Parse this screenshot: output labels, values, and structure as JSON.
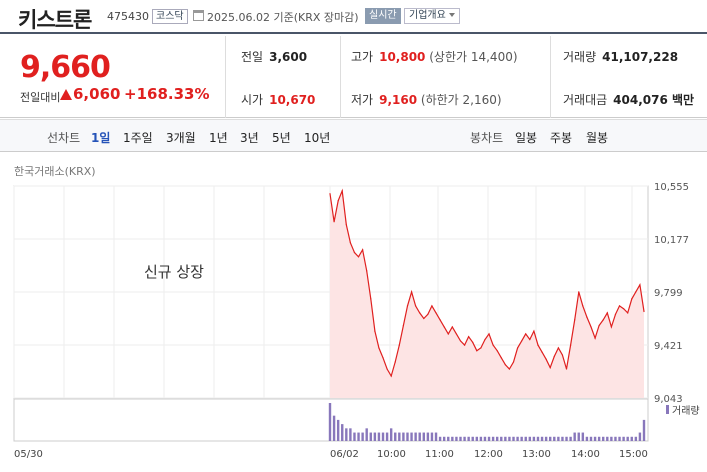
{
  "header": {
    "stock_name": "키스트론",
    "stock_code": "475430",
    "market_badge": "코스닥",
    "date_info": "2025.06.02  기준(KRX 장마감)",
    "realtime_button": "실시간",
    "company_button": "기업개요"
  },
  "price": {
    "current": "9,660",
    "change_label": "전일대비",
    "change": "6,060",
    "change_pct": "+168.33%",
    "up_color": "#e0201f"
  },
  "stats": {
    "prev_close": {
      "label": "전일",
      "value": "3,600"
    },
    "open": {
      "label": "시가",
      "value": "10,670"
    },
    "high": {
      "label": "고가",
      "value": "10,800",
      "sub": "(상한가 14,400)"
    },
    "low": {
      "label": "저가",
      "value": "9,160",
      "sub": "(하한가 2,160)"
    },
    "volume": {
      "label": "거래량",
      "value": "41,107,228"
    },
    "amount": {
      "label": "거래대금",
      "value": "404,076 백만"
    }
  },
  "tabs": {
    "line_label": "선차트",
    "line_items": [
      "1일",
      "1주일",
      "3개월",
      "1년",
      "3년",
      "5년",
      "10년"
    ],
    "candle_label": "봉차트",
    "candle_items": [
      "일봉",
      "주봉",
      "월봉"
    ],
    "active": "1일"
  },
  "exchange": "한국거래소(KRX)",
  "chart_data": {
    "type": "area",
    "annotation": "신규 상장",
    "ylim": [
      9043,
      10555
    ],
    "y_ticks": [
      "10,555",
      "10,177",
      "9,799",
      "9,421",
      "9,043"
    ],
    "x_ticks": [
      "05/30",
      "06/02",
      "10:00",
      "11:00",
      "12:00",
      "13:00",
      "14:00",
      "15:00"
    ],
    "volume_legend": "거래량",
    "line_color": "#e0201f",
    "fill_color": "#fde4e4",
    "volume_color": "#8877bb",
    "x": [
      "09:00",
      "09:05",
      "09:10",
      "09:15",
      "09:20",
      "09:25",
      "09:30",
      "09:35",
      "09:40",
      "09:45",
      "09:50",
      "09:55",
      "10:00",
      "10:05",
      "10:10",
      "10:15",
      "10:20",
      "10:25",
      "10:30",
      "10:35",
      "10:40",
      "10:45",
      "10:50",
      "10:55",
      "11:00",
      "11:05",
      "11:10",
      "11:15",
      "11:20",
      "11:25",
      "11:30",
      "11:35",
      "11:40",
      "11:45",
      "11:50",
      "11:55",
      "12:00",
      "12:05",
      "12:10",
      "12:15",
      "12:20",
      "12:25",
      "12:30",
      "12:35",
      "12:40",
      "12:45",
      "12:50",
      "12:55",
      "13:00",
      "13:05",
      "13:10",
      "13:15",
      "13:20",
      "13:25",
      "13:30",
      "13:35",
      "13:40",
      "13:45",
      "13:50",
      "13:55",
      "14:00",
      "14:05",
      "14:10",
      "14:15",
      "14:20",
      "14:25",
      "14:30",
      "14:35",
      "14:40",
      "14:45",
      "14:50",
      "14:55",
      "15:00",
      "15:05",
      "15:10",
      "15:15",
      "15:20",
      "15:30"
    ],
    "values": [
      10500,
      10300,
      10450,
      10520,
      10280,
      10150,
      10080,
      10050,
      10100,
      9950,
      9750,
      9520,
      9400,
      9330,
      9250,
      9200,
      9300,
      9420,
      9560,
      9700,
      9800,
      9700,
      9650,
      9610,
      9640,
      9700,
      9650,
      9600,
      9550,
      9500,
      9550,
      9500,
      9450,
      9420,
      9480,
      9440,
      9380,
      9400,
      9460,
      9500,
      9420,
      9380,
      9330,
      9280,
      9250,
      9300,
      9400,
      9450,
      9500,
      9460,
      9520,
      9420,
      9370,
      9320,
      9260,
      9340,
      9400,
      9350,
      9250,
      9420,
      9600,
      9800,
      9700,
      9620,
      9550,
      9470,
      9560,
      9600,
      9650,
      9550,
      9640,
      9700,
      9680,
      9650,
      9750,
      9800,
      9850,
      9660
    ],
    "volumes": [
      9,
      6,
      5,
      4,
      3,
      3,
      2,
      2,
      2,
      3,
      2,
      2,
      2,
      2,
      2,
      3,
      2,
      2,
      2,
      2,
      2,
      2,
      2,
      2,
      2,
      2,
      2,
      1,
      1,
      1,
      1,
      1,
      1,
      1,
      1,
      1,
      1,
      1,
      1,
      1,
      1,
      1,
      1,
      1,
      1,
      1,
      1,
      1,
      1,
      1,
      1,
      1,
      1,
      1,
      1,
      1,
      1,
      1,
      1,
      1,
      2,
      2,
      2,
      1,
      1,
      1,
      1,
      1,
      1,
      1,
      1,
      1,
      1,
      1,
      1,
      1,
      2,
      5
    ]
  }
}
